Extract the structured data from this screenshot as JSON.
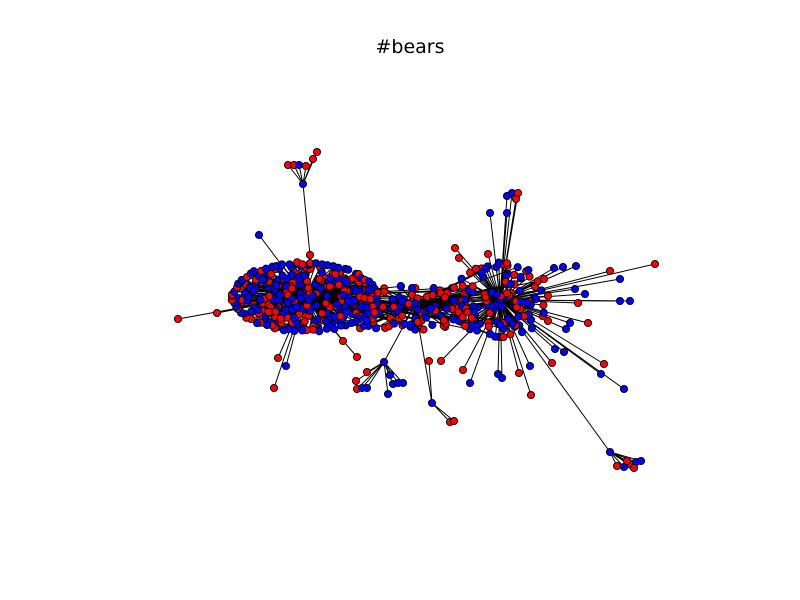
{
  "title": "#bears",
  "colors": {
    "background": "#ffffff",
    "node_red": "#ff0000",
    "node_blue": "#0000ff",
    "node_outline": "#000000",
    "edge": "#000000"
  },
  "legend": null
}
